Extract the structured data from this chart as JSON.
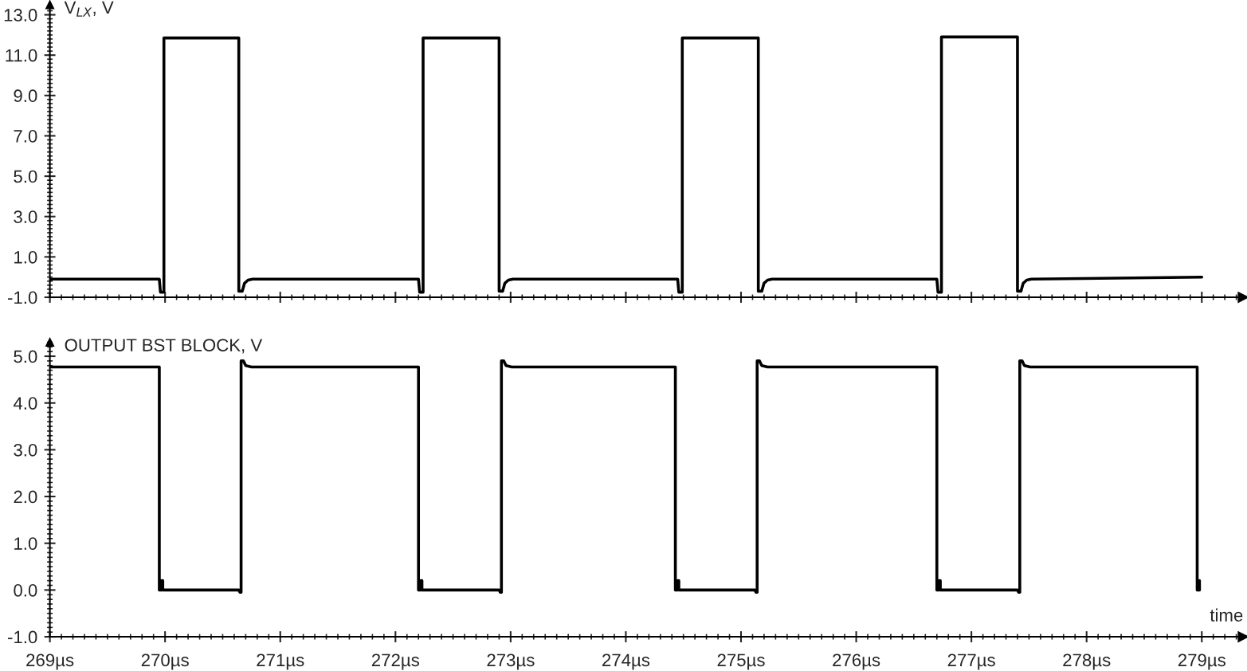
{
  "chart_data": [
    {
      "type": "line",
      "ylabel": "V$_{LX}$, V",
      "tick_labels": "y",
      "line_style": "solid",
      "xlim": [
        269,
        279.36
      ],
      "ylim": [
        -1,
        13.5
      ],
      "xticks": [
        {
          "value": 269,
          "label": null
        },
        {
          "value": 270,
          "label": null
        },
        {
          "value": 271,
          "label": null
        },
        {
          "value": 272,
          "label": null
        },
        {
          "value": 273,
          "label": null
        },
        {
          "value": 274,
          "label": null
        },
        {
          "value": 275,
          "label": null
        },
        {
          "value": 276,
          "label": null
        },
        {
          "value": 277,
          "label": null
        },
        {
          "value": 278,
          "label": null
        },
        {
          "value": 279,
          "label": null
        }
      ],
      "yticks": [
        {
          "value": -1,
          "label": "-1.0"
        },
        {
          "value": 1,
          "label": "1.0"
        },
        {
          "value": 3,
          "label": "3.0"
        },
        {
          "value": 5,
          "label": "5.0"
        },
        {
          "value": 7,
          "label": "7.0"
        },
        {
          "value": 9,
          "label": "9.0"
        },
        {
          "value": 11,
          "label": "11.0"
        },
        {
          "value": 13,
          "label": "13.0"
        }
      ],
      "series": [
        {
          "color": "#000000",
          "x": [
            269,
            269.95,
            269.96,
            269.99,
            269.99,
            270.64,
            270.64,
            270.67,
            270.69,
            270.72,
            270.76,
            272.2,
            272.21,
            272.24,
            272.24,
            272.9,
            272.9,
            272.93,
            272.95,
            272.98,
            273.02,
            274.45,
            274.46,
            274.49,
            274.49,
            275.15,
            275.15,
            275.18,
            275.2,
            275.23,
            275.27,
            276.7,
            276.71,
            276.74,
            276.74,
            277.4,
            277.4,
            277.43,
            277.45,
            277.48,
            277.52,
            279.0
          ],
          "values": [
            -0.1,
            -0.1,
            -0.75,
            -0.75,
            11.85,
            11.85,
            -0.7,
            -0.7,
            -0.3,
            -0.15,
            -0.1,
            -0.1,
            -0.75,
            -0.75,
            11.85,
            11.85,
            -0.7,
            -0.7,
            -0.3,
            -0.15,
            -0.1,
            -0.1,
            -0.75,
            -0.75,
            11.85,
            11.85,
            -0.7,
            -0.7,
            -0.3,
            -0.15,
            -0.1,
            -0.1,
            -0.75,
            -0.75,
            11.9,
            11.9,
            -0.7,
            -0.7,
            -0.3,
            -0.15,
            -0.1,
            0.0
          ]
        }
      ]
    },
    {
      "type": "line",
      "ylabel": "OUTPUT BST BLOCK, V",
      "xlabel": "time",
      "line_style": "solid",
      "xlim": [
        269,
        279.36
      ],
      "ylim": [
        -1,
        5.3
      ],
      "xticks": [
        {
          "value": 269,
          "label": "269µs"
        },
        {
          "value": 270,
          "label": "270µs"
        },
        {
          "value": 271,
          "label": "271µs"
        },
        {
          "value": 272,
          "label": "272µs"
        },
        {
          "value": 273,
          "label": "273µs"
        },
        {
          "value": 274,
          "label": "274µs"
        },
        {
          "value": 275,
          "label": "275µs"
        },
        {
          "value": 276,
          "label": "276µs"
        },
        {
          "value": 277,
          "label": "277µs"
        },
        {
          "value": 278,
          "label": "278µs"
        },
        {
          "value": 279,
          "label": "279µs"
        }
      ],
      "yticks": [
        {
          "value": -1,
          "label": "-1.0"
        },
        {
          "value": 0,
          "label": "0.0"
        },
        {
          "value": 1,
          "label": "1.0"
        },
        {
          "value": 2,
          "label": "2.0"
        },
        {
          "value": 3,
          "label": "3.0"
        },
        {
          "value": 4,
          "label": "4.0"
        },
        {
          "value": 5,
          "label": "5.0"
        }
      ],
      "series": [
        {
          "color": "#000000",
          "x": [
            269,
            269.95,
            269.95,
            269.97,
            269.97,
            269.98,
            269.98,
            270.64,
            270.65,
            270.66,
            270.66,
            270.68,
            270.7,
            270.75,
            272.2,
            272.2,
            272.22,
            272.22,
            272.23,
            272.23,
            272.9,
            272.91,
            272.92,
            272.92,
            272.94,
            272.96,
            273.01,
            274.43,
            274.43,
            274.45,
            274.45,
            274.46,
            274.46,
            275.12,
            275.13,
            275.14,
            275.14,
            275.16,
            275.18,
            275.23,
            276.7,
            276.7,
            276.72,
            276.72,
            276.73,
            276.73,
            277.4,
            277.41,
            277.42,
            277.42,
            277.44,
            277.46,
            277.51,
            278.96,
            278.96,
            278.98,
            278.98
          ],
          "values": [
            4.77,
            4.77,
            0,
            0,
            0.2,
            0.2,
            0,
            0,
            -0.05,
            -0.05,
            4.9,
            4.9,
            4.8,
            4.77,
            4.77,
            0,
            0,
            0.2,
            0.2,
            0,
            0,
            -0.05,
            -0.05,
            4.9,
            4.9,
            4.8,
            4.77,
            4.77,
            0,
            0,
            0.2,
            0.2,
            0,
            0,
            -0.05,
            -0.05,
            4.9,
            4.9,
            4.8,
            4.77,
            4.77,
            0,
            0,
            0.2,
            0.2,
            0,
            0,
            -0.05,
            -0.05,
            4.9,
            4.9,
            4.8,
            4.77,
            4.77,
            0,
            0,
            0.2
          ]
        }
      ]
    }
  ]
}
